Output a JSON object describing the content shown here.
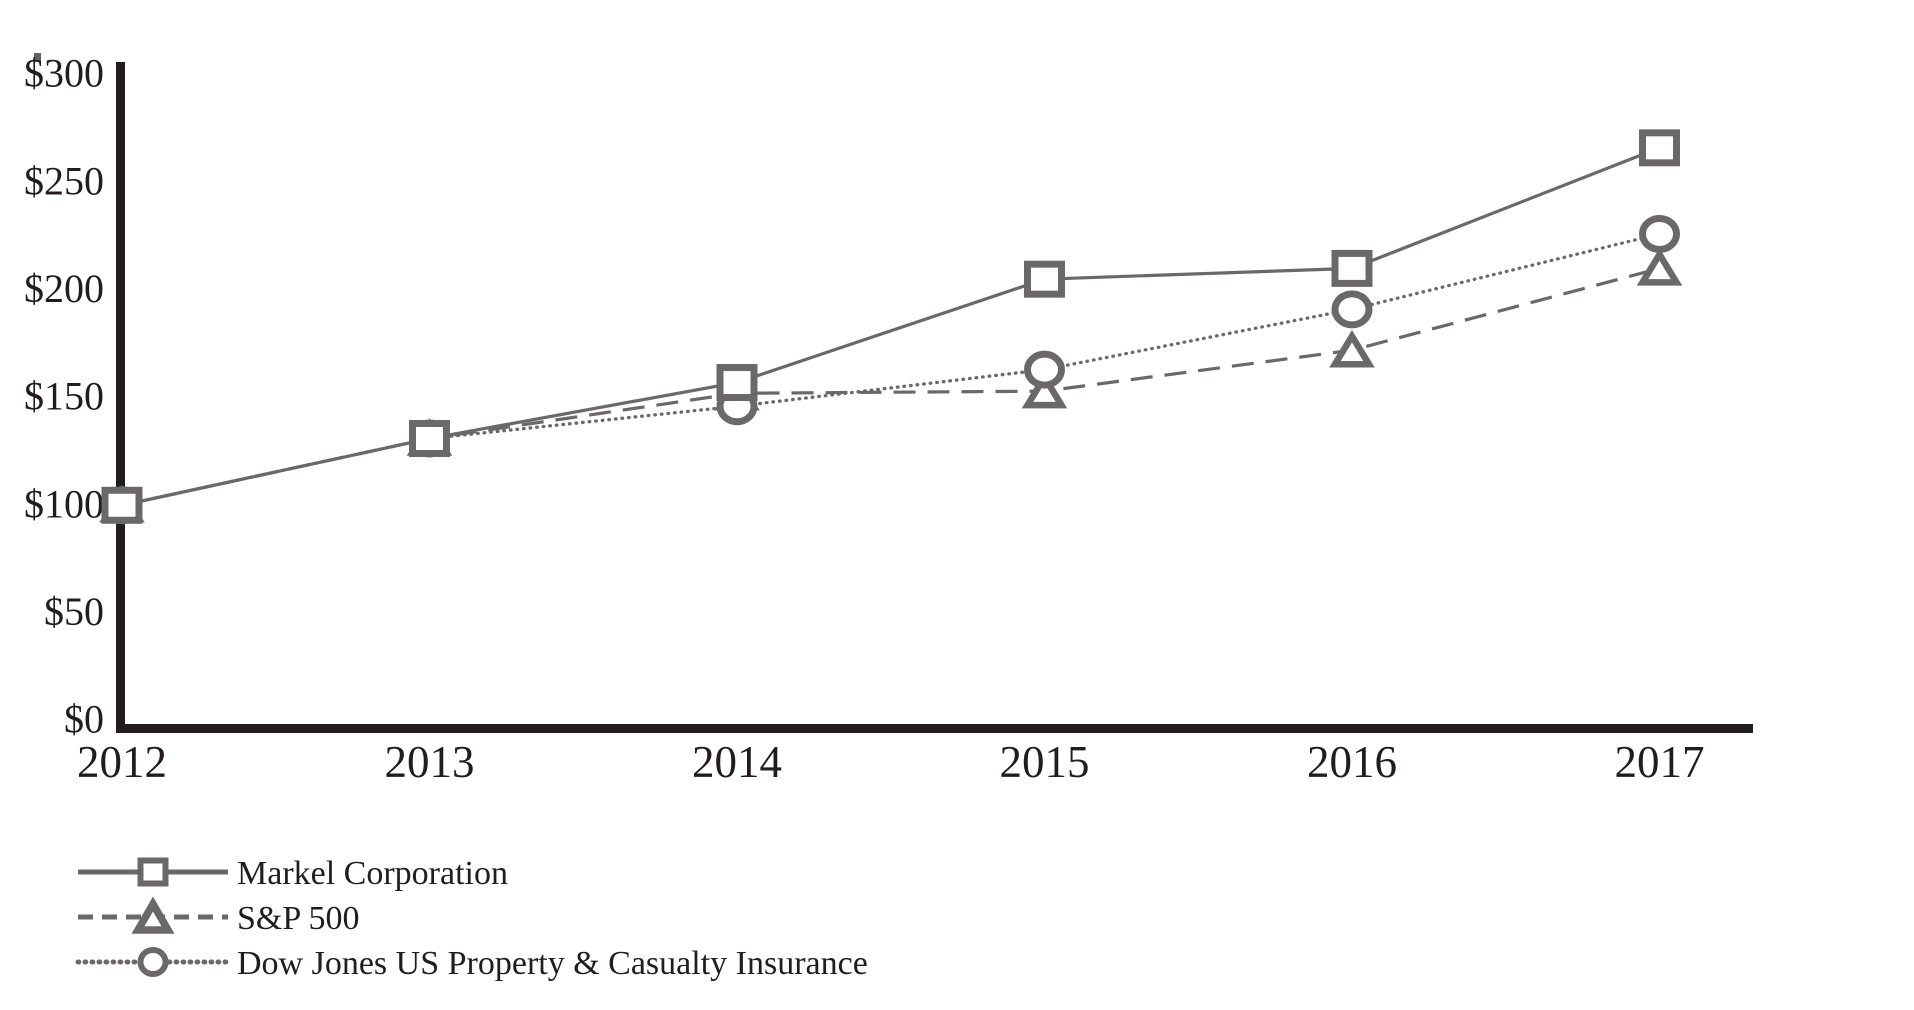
{
  "chart_data": {
    "type": "line",
    "title": "",
    "xlabel": "",
    "ylabel": "",
    "categories": [
      "2012",
      "2013",
      "2014",
      "2015",
      "2016",
      "2017"
    ],
    "series": [
      {
        "name": "Markel Corporation",
        "values": [
          100,
          131,
          157,
          205,
          210,
          266
        ],
        "line_style": "solid",
        "marker": "square"
      },
      {
        "name": "S&P 500",
        "values": [
          100,
          131,
          152,
          153,
          172,
          210
        ],
        "line_style": "dashed",
        "marker": "triangle"
      },
      {
        "name": "Dow Jones US Property & Casualty Insurance",
        "values": [
          100,
          131,
          146,
          163,
          191,
          226
        ],
        "line_style": "dotted",
        "marker": "circle"
      }
    ],
    "y_ticks": [
      {
        "label": "$0",
        "value": 0
      },
      {
        "label": "$50",
        "value": 50
      },
      {
        "label": "$100",
        "value": 100
      },
      {
        "label": "$150",
        "value": 150
      },
      {
        "label": "$200",
        "value": 200
      },
      {
        "label": "$250",
        "value": 250
      },
      {
        "label": "$300",
        "value": 300
      }
    ],
    "ylim": [
      0,
      300
    ],
    "grid": false,
    "legend_position": "bottom-left"
  },
  "colors": {
    "series_gray": "#6b686a",
    "axis_ink": "#231c1e",
    "text_ink": "#231c1e",
    "marker_fill": "#ffffff",
    "background": "#ffffff"
  }
}
